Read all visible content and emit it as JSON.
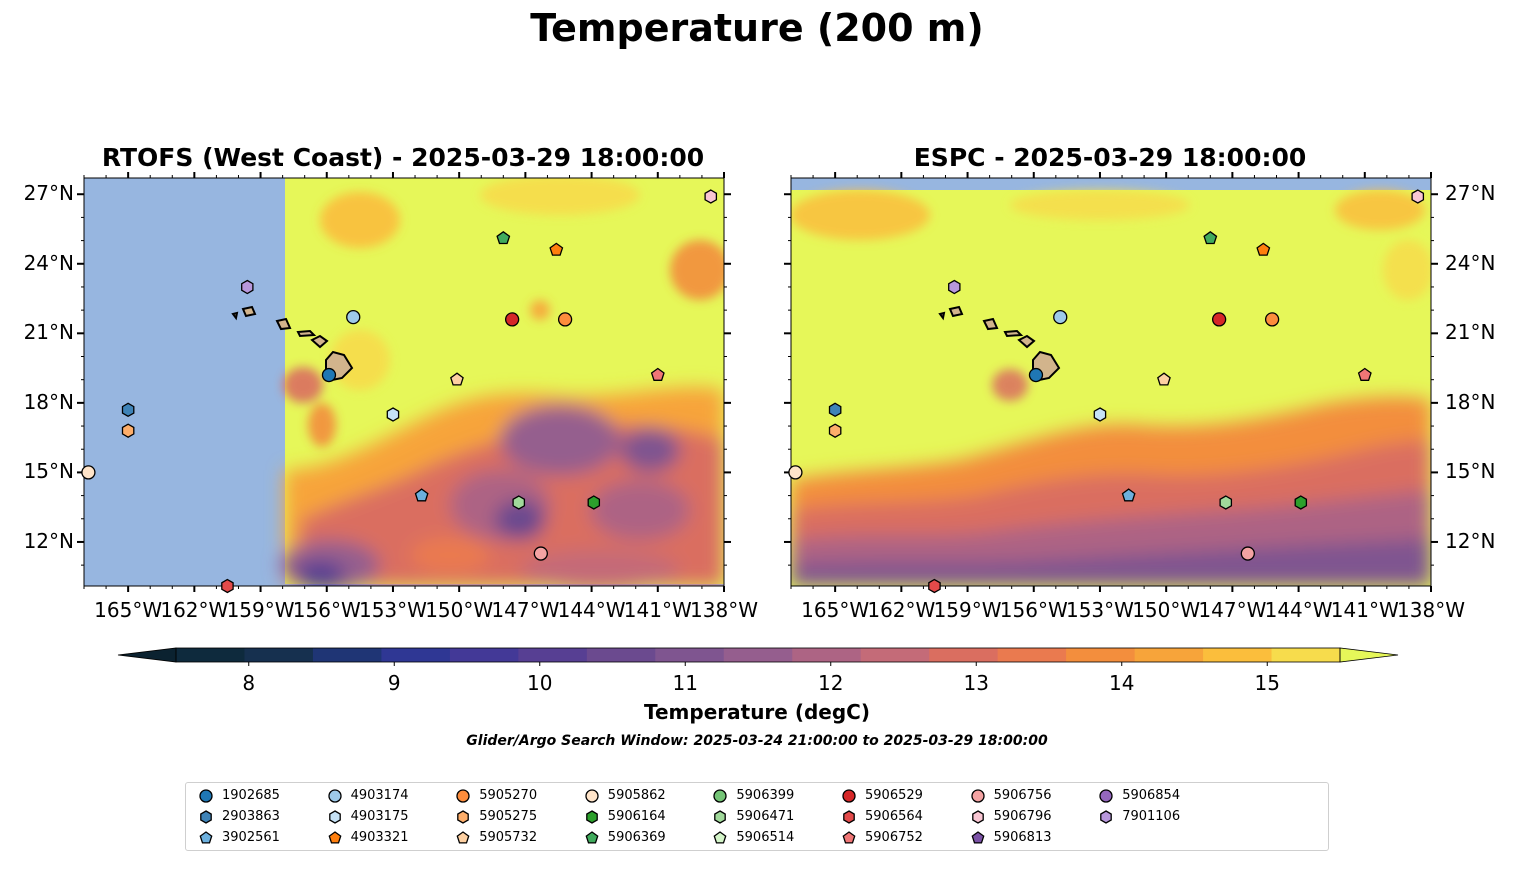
{
  "figure": {
    "title": "Temperature (200 m)",
    "left_panel_title": "RTOFS (West Coast) - 2025-03-29 18:00:00",
    "right_panel_title": "ESPC - 2025-03-29 18:00:00",
    "search_window": "Glider/Argo Search Window: 2025-03-24 21:00:00 to 2025-03-29 18:00:00"
  },
  "axes": {
    "lon_ticks": [
      "165°W",
      "162°W",
      "159°W",
      "156°W",
      "153°W",
      "150°W",
      "147°W",
      "144°W",
      "141°W",
      "138°W"
    ],
    "lat_ticks": [
      "27°N",
      "24°N",
      "21°N",
      "18°N",
      "15°N",
      "12°N"
    ],
    "lon_range": [
      -167,
      -138
    ],
    "lat_range": [
      10.1,
      27.7
    ]
  },
  "colorbar": {
    "label": "Temperature (degC)",
    "tick_labels": [
      "8",
      "9",
      "10",
      "11",
      "12",
      "13",
      "14",
      "15"
    ],
    "range": [
      7.5,
      15.5
    ],
    "colors": [
      "#0e2a3d",
      "#16304f",
      "#1f3575",
      "#2f3794",
      "#433997",
      "#573f93",
      "#6b4a8f",
      "#7f5590",
      "#955e8e",
      "#ad6484",
      "#c46b78",
      "#da6e60",
      "#ea7a4f",
      "#f38e3d",
      "#f7a43a",
      "#fbbe3c",
      "#f7dc4c"
    ],
    "under_color": "#0b2230",
    "over_color": "#e6f759"
  },
  "map_colors": {
    "land": "#d2b48c",
    "no_data": "#97b6e0",
    "warm_fill": "#e6f759"
  },
  "legend": [
    {
      "id": "1902685",
      "marker": "circle",
      "color": "#1f77b4"
    },
    {
      "id": "2903863",
      "marker": "hexagon",
      "color": "#3f83b7"
    },
    {
      "id": "3902561",
      "marker": "pentagon",
      "color": "#6cb0de"
    },
    {
      "id": "4903174",
      "marker": "circle",
      "color": "#9ecae9"
    },
    {
      "id": "4903175",
      "marker": "hexagon",
      "color": "#c6e2f6"
    },
    {
      "id": "4903321",
      "marker": "pentagon",
      "color": "#ff7f0e"
    },
    {
      "id": "5905270",
      "marker": "circle",
      "color": "#fd8d3c"
    },
    {
      "id": "5905275",
      "marker": "hexagon",
      "color": "#fdae6b"
    },
    {
      "id": "5905732",
      "marker": "pentagon",
      "color": "#fdd0a2"
    },
    {
      "id": "5905862",
      "marker": "circle",
      "color": "#ffe4c9"
    },
    {
      "id": "5906164",
      "marker": "hexagon",
      "color": "#2ca02c"
    },
    {
      "id": "5906369",
      "marker": "pentagon",
      "color": "#41ab5d"
    },
    {
      "id": "5906399",
      "marker": "circle",
      "color": "#74c476"
    },
    {
      "id": "5906471",
      "marker": "hexagon",
      "color": "#a1d99b"
    },
    {
      "id": "5906514",
      "marker": "pentagon",
      "color": "#d4f5c9"
    },
    {
      "id": "5906529",
      "marker": "circle",
      "color": "#d62728"
    },
    {
      "id": "5906564",
      "marker": "hexagon",
      "color": "#e34a4a"
    },
    {
      "id": "5906752",
      "marker": "pentagon",
      "color": "#f07676"
    },
    {
      "id": "5906756",
      "marker": "circle",
      "color": "#f4a3a3"
    },
    {
      "id": "5906796",
      "marker": "hexagon",
      "color": "#f9c6d3"
    },
    {
      "id": "5906813",
      "marker": "pentagon",
      "color": "#7b52a6"
    },
    {
      "id": "5906854",
      "marker": "circle",
      "color": "#9467bd"
    },
    {
      "id": "7901106",
      "marker": "hexagon",
      "color": "#b898dc"
    }
  ],
  "floats": [
    {
      "id": "1902685",
      "lon": -155.9,
      "lat": 19.2
    },
    {
      "id": "2903863",
      "lon": -165.0,
      "lat": 17.7
    },
    {
      "id": "3902561",
      "lon": -151.7,
      "lat": 14.0
    },
    {
      "id": "4903174",
      "lon": -154.8,
      "lat": 21.7
    },
    {
      "id": "4903175",
      "lon": -153.0,
      "lat": 17.5
    },
    {
      "id": "4903321",
      "lon": -145.6,
      "lat": 24.6
    },
    {
      "id": "5905270",
      "lon": -145.2,
      "lat": 21.6
    },
    {
      "id": "5905275",
      "lon": -165.0,
      "lat": 16.8
    },
    {
      "id": "5905732",
      "lon": -150.1,
      "lat": 19.0
    },
    {
      "id": "5905862",
      "lon": -166.8,
      "lat": 15.0
    },
    {
      "id": "5906164",
      "lon": -143.9,
      "lat": 13.7
    },
    {
      "id": "5906369",
      "lon": -148.0,
      "lat": 25.1
    },
    {
      "id": "5906471",
      "lon": -147.3,
      "lat": 13.7
    },
    {
      "id": "5906529",
      "lon": -147.6,
      "lat": 21.6
    },
    {
      "id": "5906564",
      "lon": -160.5,
      "lat": 10.1
    },
    {
      "id": "5906752",
      "lon": -141.0,
      "lat": 19.2
    },
    {
      "id": "5906756",
      "lon": -146.3,
      "lat": 11.5
    },
    {
      "id": "5906796",
      "lon": -138.6,
      "lat": 26.9
    },
    {
      "id": "7901106",
      "lon": -159.6,
      "lat": 23.0
    }
  ]
}
